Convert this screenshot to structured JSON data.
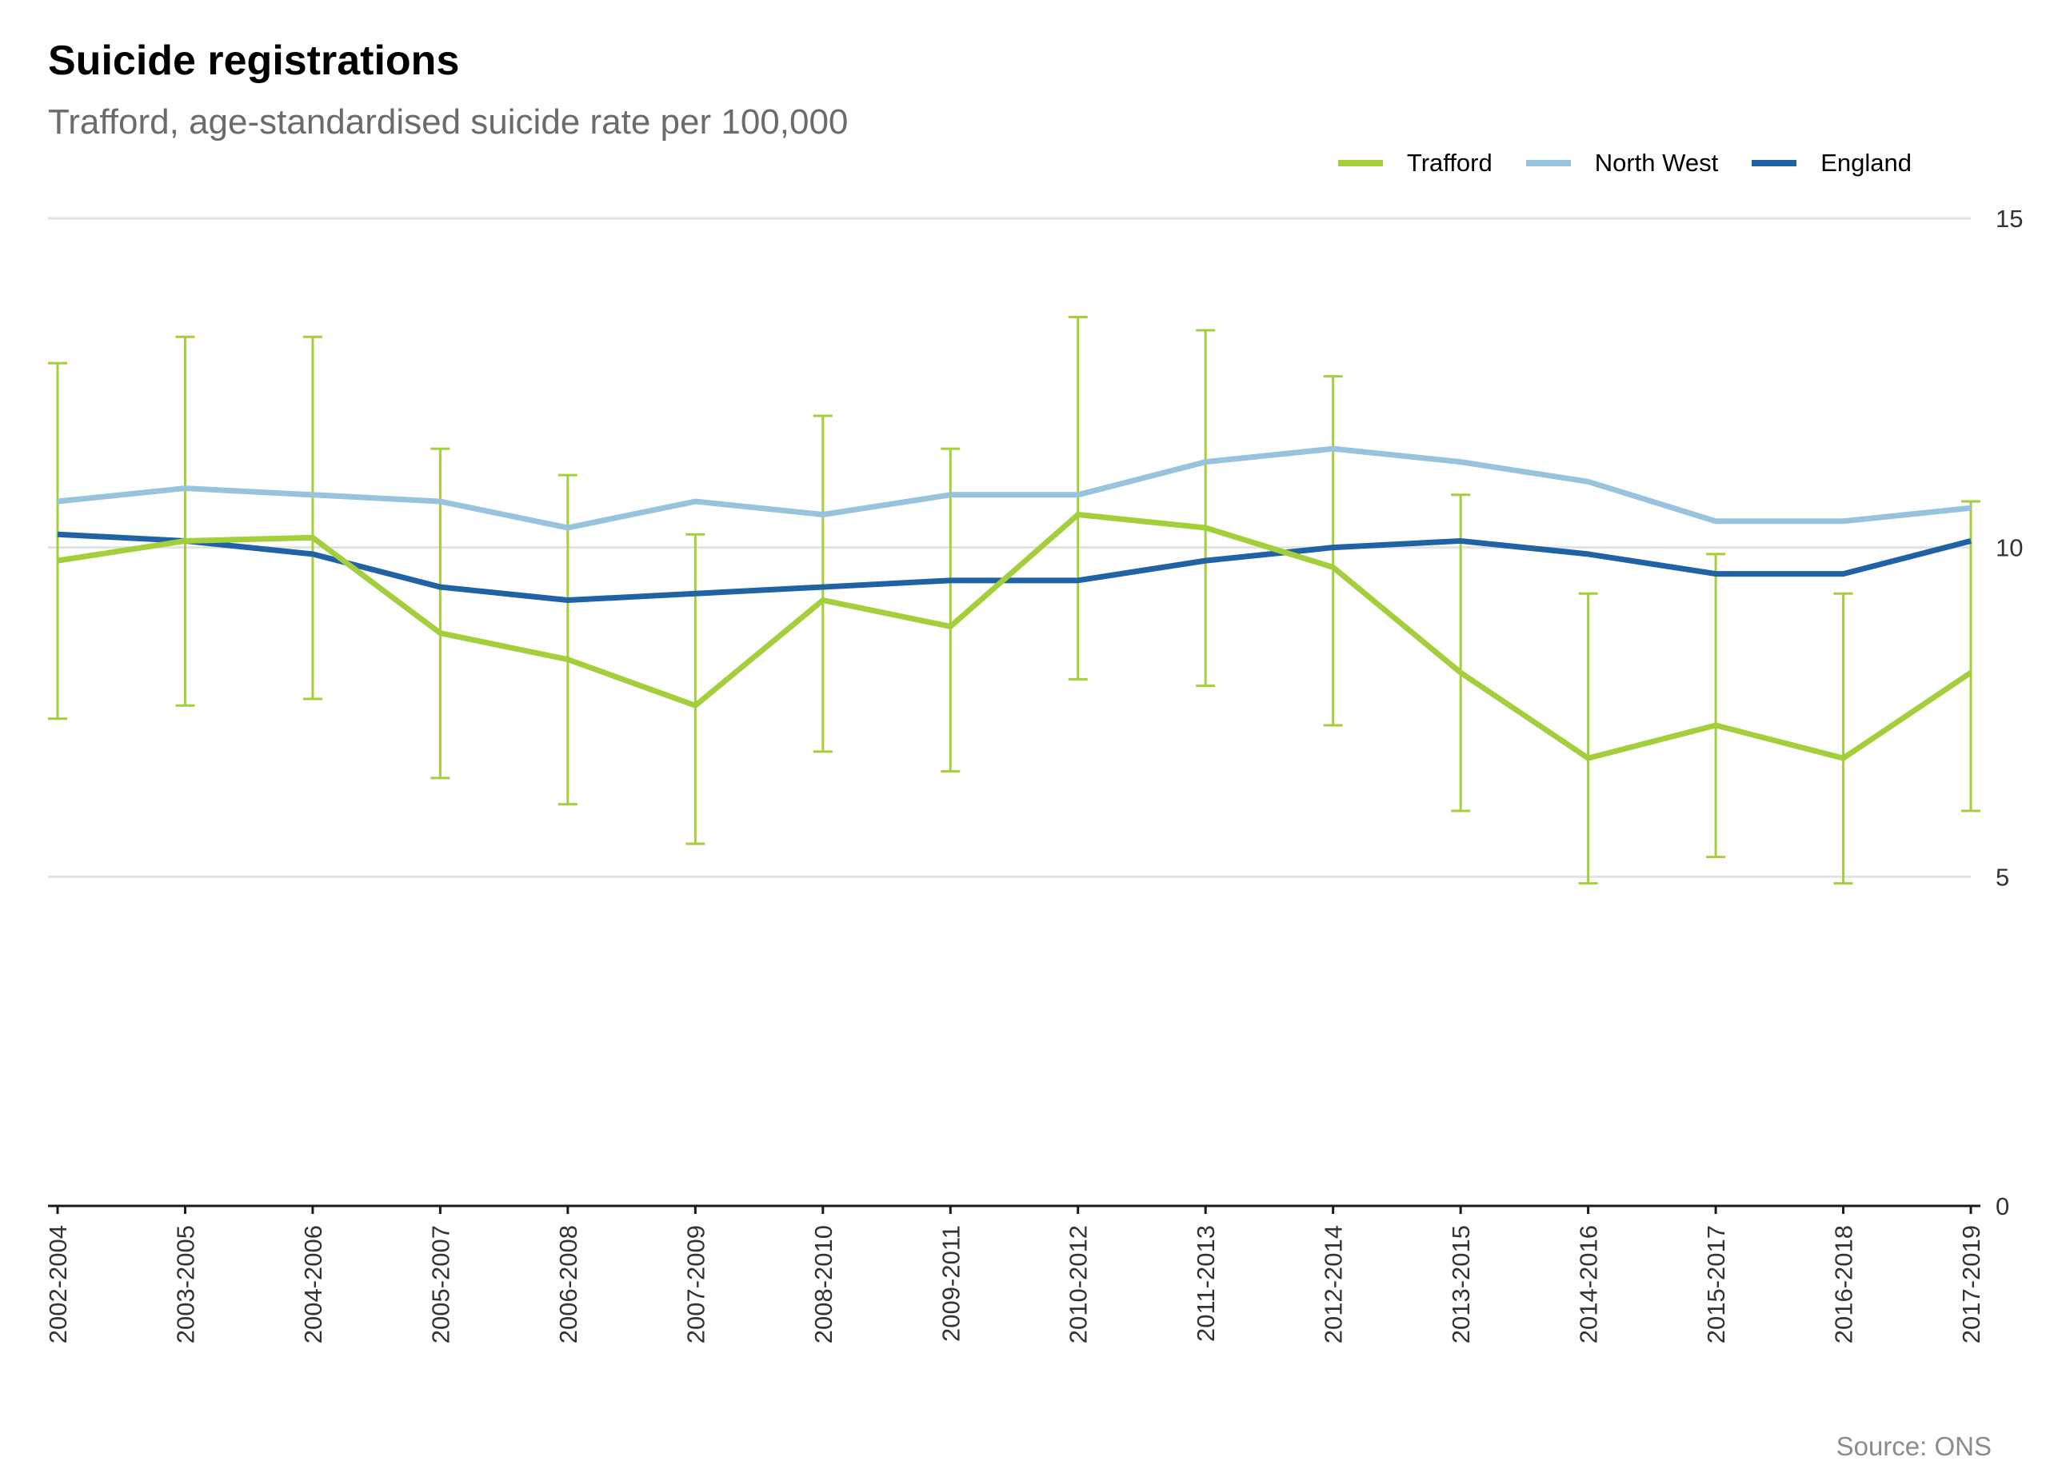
{
  "title": "Suicide registrations",
  "subtitle": "Trafford, age-standardised suicide rate per 100,000",
  "source": "Source: ONS",
  "legend": [
    {
      "name": "Trafford",
      "color": "#a3cf3b"
    },
    {
      "name": "North West",
      "color": "#97c3df"
    },
    {
      "name": "England",
      "color": "#1f62a6"
    }
  ],
  "chart_data": {
    "type": "line",
    "title": "Suicide registrations",
    "subtitle": "Trafford, age-standardised suicide rate per 100,000",
    "categories": [
      "2002-2004",
      "2003-2005",
      "2004-2006",
      "2005-2007",
      "2006-2008",
      "2007-2009",
      "2008-2010",
      "2009-2011",
      "2010-2012",
      "2011-2013",
      "2012-2014",
      "2013-2015",
      "2014-2016",
      "2015-2017",
      "2016-2018",
      "2017-2019"
    ],
    "series": [
      {
        "name": "Trafford",
        "color": "#a3cf3b",
        "values": [
          9.8,
          10.1,
          10.15,
          8.7,
          8.3,
          7.6,
          9.2,
          8.8,
          10.5,
          10.3,
          9.7,
          8.1,
          6.8,
          7.3,
          6.8,
          8.1
        ],
        "lower": [
          7.4,
          7.6,
          7.7,
          6.5,
          6.1,
          5.5,
          6.9,
          6.6,
          8.0,
          7.9,
          7.3,
          6.0,
          4.9,
          5.3,
          4.9,
          6.0
        ],
        "upper": [
          12.8,
          13.2,
          13.2,
          11.5,
          11.1,
          10.2,
          12.0,
          11.5,
          13.5,
          13.3,
          12.6,
          10.8,
          9.3,
          9.9,
          9.3,
          10.7
        ]
      },
      {
        "name": "North West",
        "color": "#97c3df",
        "values": [
          10.7,
          10.9,
          10.8,
          10.7,
          10.3,
          10.7,
          10.5,
          10.8,
          10.8,
          11.3,
          11.5,
          11.3,
          11.0,
          10.4,
          10.4,
          10.6
        ]
      },
      {
        "name": "England",
        "color": "#1f62a6",
        "values": [
          10.2,
          10.1,
          9.9,
          9.4,
          9.2,
          9.3,
          9.4,
          9.5,
          9.5,
          9.8,
          10.0,
          10.1,
          9.9,
          9.6,
          9.6,
          10.1
        ]
      }
    ],
    "ylim": [
      0,
      15
    ],
    "yticks": [
      0,
      5,
      10,
      15
    ],
    "grid": true,
    "legend_position": "top-right",
    "y_axis_side": "right"
  }
}
